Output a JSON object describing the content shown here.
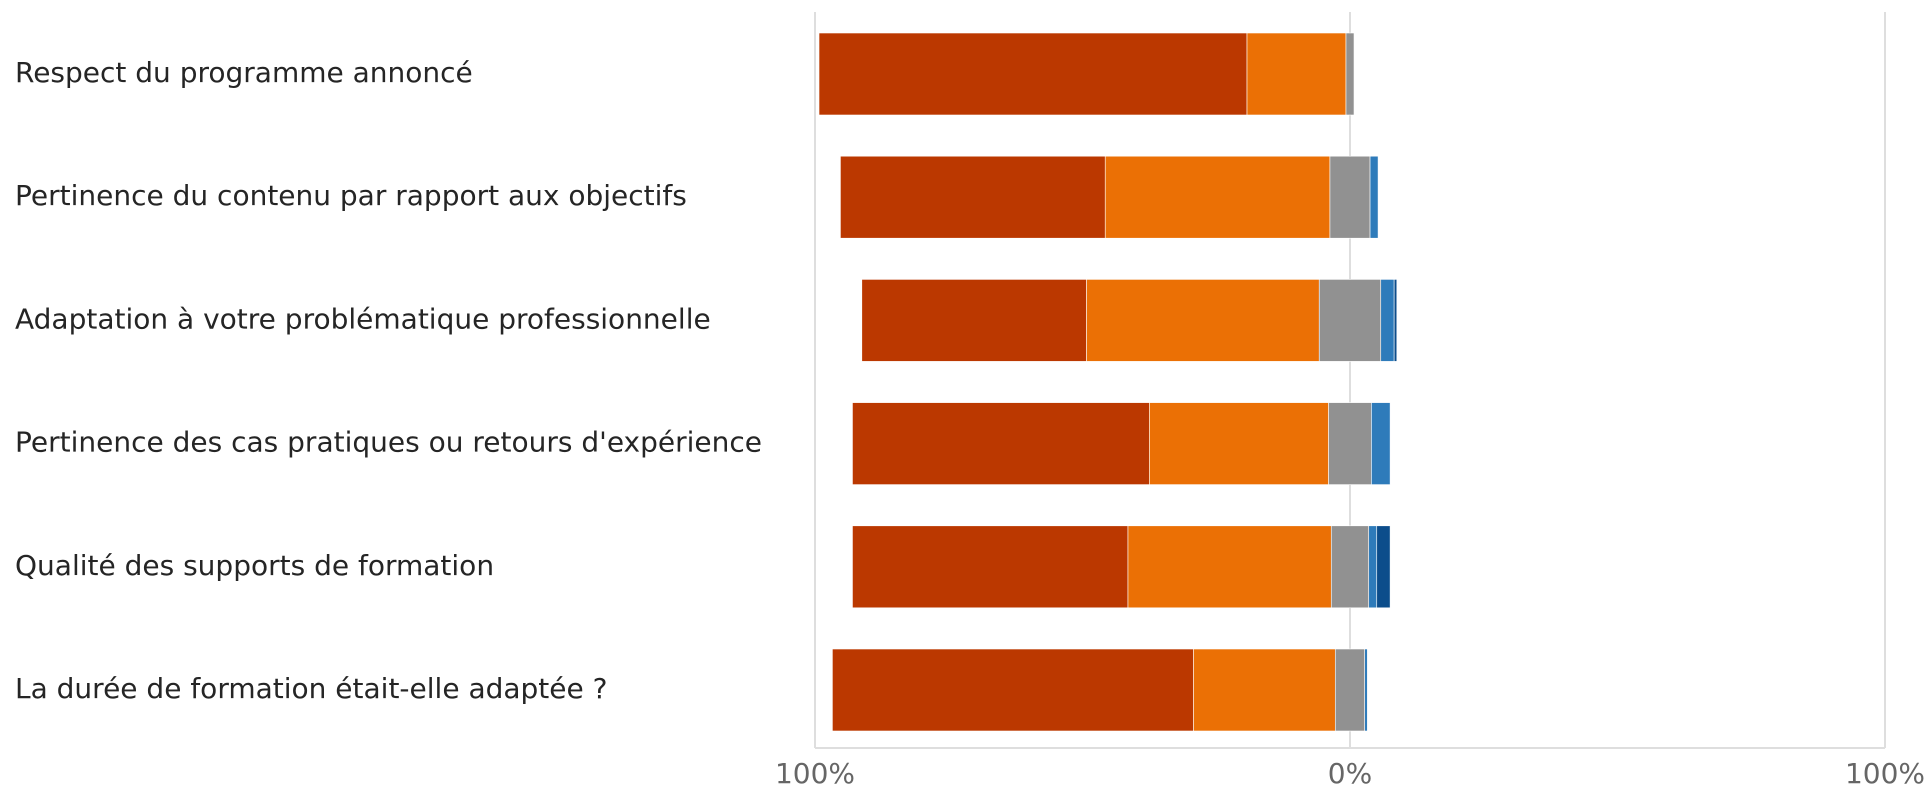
{
  "chart_data": {
    "type": "bar",
    "orientation": "horizontal",
    "stacking": "diverging",
    "title": "",
    "xlabel": "",
    "ylabel": "",
    "xlim": [
      -100,
      100
    ],
    "grid": true,
    "legend": "none",
    "x_ticks": [
      {
        "value": -100,
        "label": "100%"
      },
      {
        "value": 0,
        "label": "0%"
      },
      {
        "value": 100,
        "label": "100%"
      }
    ],
    "categories": [
      "Respect du programme annoncé",
      "Pertinence du contenu par rapport aux objectifs",
      "Adaptation à votre problématique professionnelle",
      "Pertinence des cas pratiques ou retours d'expérience",
      "Qualité des supports de formation",
      "La durée de formation était-elle adaptée ?"
    ],
    "series": [
      {
        "side": "negative",
        "color": "#bb3800",
        "values": [
          80,
          49.5,
          42,
          55.5,
          51.5,
          67.5
        ]
      },
      {
        "side": "negative",
        "color": "#eb7005",
        "values": [
          18.5,
          42,
          43.5,
          33.5,
          38,
          26.5
        ]
      },
      {
        "side": "neutral",
        "color": "#919191",
        "values": [
          1.5,
          7.5,
          11.5,
          8,
          7,
          5.5
        ]
      },
      {
        "side": "positive",
        "color": "#2e7bba",
        "values": [
          0,
          1.5,
          2.5,
          3.5,
          1.5,
          0.5
        ]
      },
      {
        "side": "positive",
        "color": "#0c4d8b",
        "values": [
          0,
          0,
          0.5,
          0,
          2.5,
          0
        ]
      }
    ]
  }
}
